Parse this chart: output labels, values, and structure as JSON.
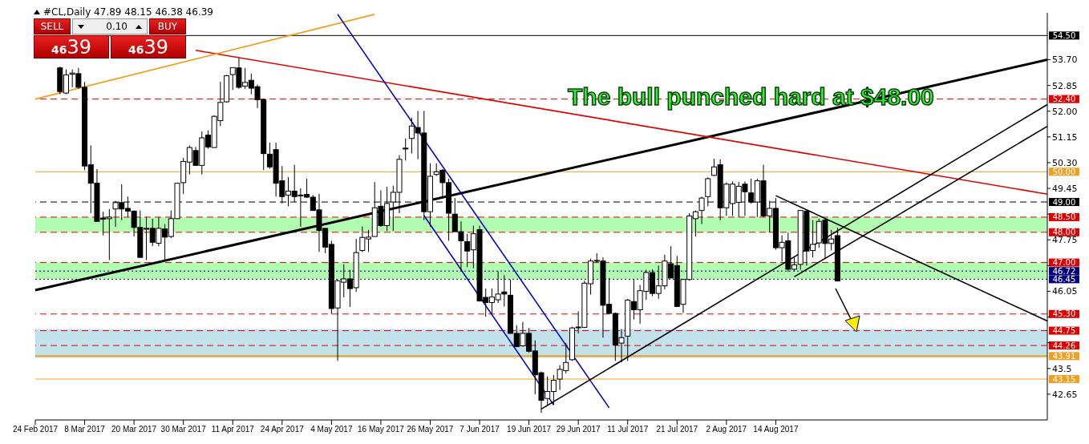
{
  "chart_data": {
    "type": "candlestick",
    "title": "#CL,Daily 47.89 48.15 46.38 46.39",
    "annotations": [
      "The bull punched hard at $48.00",
      "SELL",
      "0.10",
      "BUY",
      "46",
      "39",
      "46",
      "39"
    ],
    "categories": [
      "24 Feb 2017",
      null,
      null,
      null,
      null,
      null,
      null,
      null,
      "8 Mar 2017",
      null,
      null,
      null,
      null,
      null,
      null,
      null,
      "20 Mar 2017",
      null,
      null,
      null,
      null,
      null,
      null,
      null,
      "30 Mar 2017",
      null,
      null,
      null,
      null,
      null,
      null,
      null,
      "11 Apr 2017",
      null,
      null,
      null,
      null,
      null,
      null,
      null,
      "24 Apr 2017",
      null,
      null,
      null,
      null,
      null,
      null,
      null,
      "4 May 2017",
      null,
      null,
      null,
      null,
      null,
      null,
      null,
      "16 May 2017",
      null,
      null,
      null,
      null,
      null,
      null,
      null,
      "26 May 2017",
      null,
      null,
      null,
      null,
      null,
      null,
      null,
      "7 Jun 2017",
      null,
      null,
      null,
      null,
      null,
      null,
      null,
      "19 Jun 2017",
      null,
      null,
      null,
      null,
      null,
      null,
      null,
      "29 Jun 2017",
      null,
      null,
      null,
      null,
      null,
      null,
      null,
      "11 Jul 2017",
      null,
      null,
      null,
      null,
      null,
      null,
      null,
      "21 Jul 2017",
      null,
      null,
      null,
      null,
      null,
      null,
      null,
      "2 Aug 2017",
      null,
      null,
      null,
      null,
      null,
      null,
      null,
      "14 Aug 2017",
      null,
      null,
      null,
      null,
      null,
      null,
      null,
      null,
      null,
      null,
      null,
      null,
      null,
      null,
      null,
      null,
      null,
      null,
      null,
      null,
      null,
      null,
      null,
      null,
      null,
      null,
      null,
      null,
      null,
      null,
      null,
      null,
      null,
      null,
      null,
      null,
      null,
      null,
      null,
      null,
      null,
      null,
      null,
      null
    ],
    "ohlc": [
      null,
      null,
      null,
      null,
      [
        53.43,
        53.47,
        52.56,
        52.65
      ],
      [
        52.6,
        53.38,
        52.56,
        53.2
      ],
      [
        53.22,
        53.38,
        52.79,
        53.26
      ],
      [
        53.24,
        53.43,
        52.74,
        52.79
      ],
      [
        52.79,
        52.97,
        50.05,
        50.19
      ],
      [
        50.23,
        50.87,
        48.63,
        49.62
      ],
      [
        49.62,
        50.09,
        48.36,
        48.36
      ],
      [
        48.47,
        48.68,
        47.9,
        48.43
      ],
      [
        48.45,
        48.77,
        47.08,
        48.5
      ],
      [
        48.77,
        49.04,
        48.18,
        48.98
      ],
      [
        48.98,
        49.59,
        48.4,
        48.77
      ],
      [
        48.79,
        49.18,
        48.5,
        48.7
      ],
      [
        48.7,
        48.72,
        47.86,
        48.16
      ],
      [
        48.16,
        48.72,
        47.17,
        47.17
      ],
      [
        48.13,
        48.5,
        47.08,
        48.12
      ],
      [
        48.13,
        48.45,
        47.54,
        47.67
      ],
      [
        47.64,
        48.5,
        47.54,
        48.13
      ],
      [
        48.11,
        48.27,
        47.08,
        47.84
      ],
      [
        47.86,
        48.72,
        47.81,
        48.45
      ],
      [
        48.45,
        49.64,
        48.45,
        49.62
      ],
      [
        49.64,
        50.46,
        49.27,
        50.34
      ],
      [
        50.32,
        50.87,
        49.91,
        50.8
      ],
      [
        50.7,
        50.82,
        50.21,
        50.21
      ],
      [
        50.21,
        51.33,
        49.91,
        51.12
      ],
      [
        51.21,
        51.37,
        50.76,
        50.82
      ],
      [
        50.8,
        51.87,
        50.8,
        51.83
      ],
      [
        51.69,
        52.97,
        51.51,
        52.29
      ],
      [
        52.31,
        53.2,
        52.28,
        53.17
      ],
      [
        53.21,
        53.44,
        52.7,
        53.44
      ],
      [
        53.43,
        53.76,
        52.74,
        52.79
      ],
      [
        52.83,
        53.43,
        52.74,
        52.95
      ],
      [
        53.02,
        53.24,
        52.56,
        52.76
      ],
      [
        52.81,
        52.88,
        52.1,
        52.38
      ],
      [
        52.38,
        52.42,
        50.05,
        50.6
      ],
      [
        50.58,
        50.96,
        50.1,
        50.16
      ],
      [
        50.73,
        50.96,
        49.18,
        49.62
      ],
      [
        49.7,
        50.19,
        48.95,
        49.18
      ],
      [
        49.23,
        49.82,
        48.86,
        49.36
      ],
      [
        49.36,
        50.23,
        49.0,
        49.18
      ],
      [
        49.23,
        49.45,
        48.18,
        49.22
      ],
      [
        49.25,
        49.77,
        49.14,
        49.16
      ],
      [
        49.16,
        49.23,
        48.72,
        48.72
      ],
      [
        48.74,
        49.27,
        47.35,
        48.06
      ],
      [
        48.13,
        48.13,
        47.31,
        47.51
      ],
      [
        47.6,
        47.72,
        45.3,
        45.48
      ],
      [
        45.5,
        46.44,
        43.75,
        46.4
      ],
      [
        46.35,
        46.94,
        45.85,
        46.46
      ],
      [
        46.46,
        46.76,
        45.53,
        46.14
      ],
      [
        46.17,
        47.78,
        46.03,
        47.33
      ],
      [
        47.4,
        48.19,
        47.35,
        47.83
      ],
      [
        47.78,
        48.08,
        47.35,
        47.84
      ],
      [
        47.86,
        49.66,
        47.86,
        48.81
      ],
      [
        48.86,
        49.39,
        48.18,
        48.22
      ],
      [
        48.22,
        49.5,
        48.04,
        48.95
      ],
      [
        49.0,
        49.54,
        48.04,
        49.32
      ],
      [
        49.32,
        50.55,
        48.63,
        50.41
      ],
      [
        50.76,
        51.1,
        50.37,
        50.78
      ],
      [
        51.1,
        51.78,
        50.6,
        51.51
      ],
      [
        51.46,
        52.01,
        50.41,
        51.28
      ],
      [
        51.28,
        52.01,
        48.4,
        48.68
      ],
      [
        48.68,
        50.28,
        48.18,
        49.85
      ],
      [
        49.91,
        50.28,
        49.86,
        50.0
      ],
      [
        50.05,
        50.09,
        49.13,
        49.64
      ],
      [
        49.64,
        49.77,
        47.72,
        48.63
      ],
      [
        48.6,
        49.13,
        48.02,
        48.02
      ],
      [
        48.02,
        48.36,
        46.71,
        47.72
      ],
      [
        47.69,
        47.95,
        46.85,
        47.38
      ],
      [
        47.42,
        48.22,
        46.81,
        47.95
      ],
      [
        48.09,
        48.22,
        45.71,
        45.73
      ],
      [
        45.85,
        46.14,
        45.21,
        45.68
      ],
      [
        45.68,
        46.14,
        45.3,
        45.86
      ],
      [
        45.77,
        46.71,
        45.66,
        45.96
      ],
      [
        46.03,
        46.58,
        45.55,
        45.96
      ],
      [
        45.92,
        46.44,
        44.66,
        44.66
      ],
      [
        44.66,
        44.93,
        44.22,
        44.22
      ],
      [
        44.25,
        45.04,
        44.22,
        44.66
      ],
      [
        44.66,
        44.84,
        44.02,
        44.07
      ],
      [
        44.08,
        44.43,
        42.65,
        43.29
      ],
      [
        43.36,
        43.4,
        42.03,
        42.45
      ],
      [
        42.51,
        43.24,
        42.29,
        42.74
      ],
      [
        42.74,
        43.29,
        42.29,
        43.11
      ],
      [
        43.15,
        43.61,
        42.79,
        43.47
      ],
      [
        43.43,
        44.34,
        43.34,
        43.7
      ],
      [
        43.79,
        44.88,
        43.75,
        44.84
      ],
      [
        44.85,
        45.39,
        44.66,
        44.87
      ],
      [
        44.86,
        46.4,
        44.84,
        46.32
      ],
      [
        46.3,
        47.13,
        45.94,
        47.05
      ],
      [
        47.07,
        47.31,
        46.99,
        47.05
      ],
      [
        47.05,
        47.17,
        44.52,
        45.59
      ],
      [
        45.62,
        46.49,
        45.3,
        45.32
      ],
      [
        45.32,
        45.35,
        43.75,
        44.28
      ],
      [
        44.34,
        44.8,
        43.7,
        44.52
      ],
      [
        44.57,
        45.8,
        43.75,
        45.76
      ],
      [
        45.71,
        46.44,
        45.12,
        45.44
      ],
      [
        45.44,
        46.26,
        44.98,
        46.07
      ],
      [
        46.05,
        46.76,
        45.77,
        46.67
      ],
      [
        46.67,
        46.78,
        45.89,
        45.98
      ],
      [
        45.98,
        46.9,
        45.8,
        46.23
      ],
      [
        46.23,
        47.26,
        46.12,
        47.05
      ],
      [
        46.96,
        47.54,
        46.49,
        46.49
      ],
      [
        46.9,
        47.22,
        45.55,
        45.55
      ],
      [
        45.62,
        46.46,
        45.34,
        46.44
      ],
      [
        46.44,
        48.63,
        46.4,
        48.54
      ],
      [
        48.45,
        48.72,
        47.86,
        48.68
      ],
      [
        48.72,
        49.18,
        48.27,
        49.13
      ],
      [
        49.18,
        49.82,
        48.86,
        49.77
      ],
      [
        49.88,
        50.43,
        49.86,
        50.16
      ],
      [
        50.23,
        50.41,
        48.4,
        48.81
      ],
      [
        48.81,
        49.65,
        48.54,
        49.59
      ],
      [
        48.95,
        49.68,
        48.54,
        49.59
      ],
      [
        48.99,
        49.66,
        48.5,
        49.52
      ],
      [
        49.59,
        49.68,
        48.54,
        49.34
      ],
      [
        49.3,
        49.77,
        48.95,
        49.0
      ],
      [
        49.0,
        49.77,
        48.5,
        49.7
      ],
      [
        49.7,
        50.23,
        48.5,
        48.54
      ],
      [
        48.54,
        49.04,
        47.99,
        48.79
      ],
      [
        48.79,
        49.13,
        47.42,
        47.49
      ],
      [
        47.49,
        47.9,
        47.03,
        47.67
      ],
      [
        47.72,
        47.99,
        46.69,
        46.78
      ],
      [
        46.78,
        47.17,
        46.71,
        46.92
      ],
      [
        46.94,
        48.72,
        46.76,
        48.72
      ],
      [
        48.7,
        48.72,
        46.9,
        47.38
      ],
      [
        47.4,
        48.4,
        47.17,
        47.6
      ],
      [
        47.65,
        48.45,
        47.49,
        48.36
      ],
      [
        48.4,
        48.45,
        47.11,
        47.63
      ],
      [
        47.63,
        48.08,
        47.4,
        47.78
      ],
      [
        47.89,
        48.15,
        46.38,
        46.39
      ],
      null,
      null,
      null,
      null,
      null,
      null,
      null,
      null,
      null,
      null,
      null,
      null,
      null,
      null,
      null,
      null,
      null,
      null,
      null,
      null,
      null,
      null,
      null,
      null,
      null,
      null,
      null,
      null,
      null,
      null,
      null,
      null,
      null,
      null
    ],
    "series": [
      {
        "type": "line",
        "color": "#000000",
        "values": [
          46.09,
          null,
          null,
          null,
          null,
          null,
          null,
          null,
          null,
          null,
          null,
          null,
          null,
          null,
          null,
          null,
          null,
          null,
          null,
          null,
          null,
          null,
          null,
          null,
          null,
          null,
          null,
          null,
          null,
          null,
          null,
          null,
          null,
          null,
          null,
          null,
          null,
          null,
          null,
          null,
          null,
          null,
          null,
          null,
          null,
          null,
          null,
          null,
          null,
          null,
          null,
          null,
          null,
          null,
          null,
          null,
          null,
          null,
          null,
          null,
          null,
          null,
          null,
          null,
          null,
          null,
          null,
          null,
          null,
          null,
          null,
          null,
          null,
          null,
          null,
          null,
          null,
          null,
          null,
          null,
          null,
          null,
          null,
          null,
          null,
          null,
          null,
          null,
          null,
          null,
          null,
          null,
          null,
          null,
          null,
          null,
          null,
          null,
          null,
          null,
          null,
          null,
          null,
          null,
          null,
          null,
          null,
          null,
          null,
          null,
          null,
          null,
          null,
          null,
          null,
          null,
          null,
          null,
          null,
          null,
          null,
          null,
          null,
          null,
          null,
          null,
          null,
          null,
          null,
          null,
          null,
          null,
          null,
          null,
          null,
          null,
          null,
          null,
          null,
          null,
          null,
          null,
          null,
          null,
          null,
          null,
          null,
          null,
          null,
          null,
          null,
          null,
          null,
          null,
          null,
          null,
          null,
          null,
          null,
          null,
          null,
          null,
          null,
          null,
          53.7
        ]
      },
      {
        "type": "line",
        "color": "#e00000",
        "values": [
          null,
          null,
          null,
          null,
          null,
          null,
          null,
          null,
          null,
          null,
          null,
          null,
          null,
          null,
          null,
          null,
          null,
          null,
          null,
          null,
          null,
          null,
          null,
          null,
          null,
          null,
          54.01,
          null,
          null,
          null,
          null,
          null,
          null,
          null,
          null,
          null,
          null,
          null,
          null,
          null,
          null,
          null,
          null,
          null,
          null,
          null,
          null,
          null,
          null,
          null,
          null,
          null,
          null,
          null,
          null,
          null,
          null,
          null,
          null,
          null,
          null,
          null,
          null,
          null,
          null,
          null,
          null,
          null,
          null,
          null,
          null,
          null,
          null,
          null,
          null,
          null,
          null,
          null,
          null,
          null,
          null,
          null,
          null,
          null,
          null,
          null,
          null,
          null,
          null,
          null,
          null,
          null,
          null,
          null,
          null,
          null,
          null,
          null,
          null,
          null,
          null,
          null,
          null,
          null,
          null,
          null,
          null,
          null,
          null,
          null,
          null,
          null,
          null,
          null,
          null,
          null,
          null,
          null,
          null,
          null,
          null,
          null,
          null,
          null,
          null,
          null,
          null,
          null,
          null,
          null,
          null,
          null,
          null,
          null,
          null,
          null,
          null,
          null,
          null,
          null,
          null,
          null,
          null,
          null,
          null,
          null,
          null,
          null,
          null,
          null,
          null,
          null,
          null,
          null,
          null,
          null,
          null,
          null,
          null,
          null,
          null,
          null,
          null,
          null,
          49.26
        ]
      },
      {
        "type": "line",
        "color": "#f0a020",
        "values": [
          52.4,
          null,
          null,
          null,
          null,
          null,
          null,
          null,
          null,
          null,
          null,
          null,
          null,
          null,
          null,
          null,
          null,
          null,
          null,
          null,
          null,
          null,
          null,
          null,
          null,
          null,
          null,
          null,
          null,
          null,
          null,
          null,
          null,
          null,
          null,
          null,
          null,
          null,
          null,
          null,
          null,
          null,
          null,
          null,
          null,
          null,
          null,
          null,
          null,
          null,
          null,
          null,
          null,
          null,
          null,
          55.2,
          null,
          null,
          null,
          null,
          null,
          null,
          null,
          null,
          null,
          null,
          null,
          null,
          null,
          null,
          null,
          null,
          null,
          null,
          null,
          null,
          null,
          null,
          null,
          null,
          null,
          null,
          null,
          null,
          null,
          null,
          null,
          null,
          null,
          null,
          null,
          null,
          null,
          null,
          null,
          null,
          null,
          null,
          null,
          null,
          null,
          null,
          null,
          null,
          null,
          null,
          null,
          null,
          null,
          null,
          null,
          null,
          null,
          null,
          null,
          null,
          null,
          null,
          null,
          null,
          null,
          null,
          null,
          null,
          null,
          null,
          null,
          null,
          null,
          null,
          null,
          null,
          null,
          null,
          null,
          null,
          null,
          null,
          null,
          null,
          null,
          null,
          null,
          null,
          null,
          null,
          null,
          null,
          null,
          null,
          null,
          null,
          null,
          null,
          null,
          null,
          null,
          null,
          null,
          null,
          null,
          null,
          null,
          null,
          null
        ]
      },
      {
        "type": "line",
        "color": "#0000c0",
        "values": [
          null,
          null,
          null,
          null,
          null,
          null,
          null,
          null,
          null,
          null,
          null,
          null,
          null,
          null,
          null,
          null,
          null,
          null,
          null,
          null,
          null,
          null,
          null,
          null,
          null,
          null,
          null,
          null,
          null,
          null,
          null,
          null,
          null,
          null,
          null,
          null,
          null,
          null,
          null,
          null,
          null,
          null,
          null,
          null,
          null,
          null,
          null,
          null,
          null,
          55.2,
          null,
          null,
          null,
          null,
          null,
          null,
          null,
          null,
          null,
          null,
          null,
          null,
          null,
          null,
          null,
          null,
          null,
          null,
          null,
          null,
          null,
          null,
          null,
          null,
          null,
          null,
          null,
          null,
          null,
          null,
          null,
          null,
          null,
          null,
          null,
          null,
          null,
          null,
          null,
          null,
          null,
          null,
          null,
          42.2,
          null,
          null,
          null,
          null,
          null,
          null,
          null,
          null,
          null,
          null,
          null,
          null,
          null,
          null,
          null,
          null,
          null,
          null,
          null,
          null,
          null,
          null,
          null,
          null,
          null,
          null,
          null,
          null,
          null,
          null,
          null,
          null,
          null,
          null,
          null,
          null,
          null,
          null,
          null,
          null,
          null,
          null,
          null,
          null,
          null,
          null,
          null,
          null,
          null,
          null,
          null,
          null,
          null,
          null,
          null,
          null,
          null,
          null,
          null,
          null,
          null,
          null,
          null,
          null,
          null,
          null,
          null,
          null,
          null,
          null,
          null
        ]
      },
      {
        "type": "line",
        "color": "#0000c0",
        "values": [
          null,
          null,
          null,
          null,
          null,
          null,
          null,
          null,
          null,
          null,
          null,
          null,
          null,
          null,
          null,
          null,
          null,
          null,
          null,
          null,
          null,
          null,
          null,
          null,
          null,
          null,
          null,
          null,
          null,
          null,
          null,
          null,
          null,
          null,
          null,
          null,
          null,
          null,
          null,
          null,
          null,
          null,
          null,
          null,
          null,
          null,
          null,
          null,
          null,
          null,
          null,
          null,
          null,
          null,
          null,
          null,
          null,
          null,
          null,
          null,
          null,
          null,
          null,
          48.55,
          null,
          null,
          null,
          null,
          null,
          null,
          null,
          null,
          null,
          null,
          null,
          null,
          null,
          null,
          null,
          null,
          null,
          null,
          null,
          null,
          42.3,
          null,
          null,
          null,
          null,
          null,
          null,
          null,
          null,
          null,
          null,
          null,
          null,
          null,
          null,
          null,
          null,
          null,
          null,
          null,
          null,
          null,
          null,
          null,
          null,
          null,
          null,
          null,
          null,
          null,
          null,
          null,
          null,
          null,
          null,
          null,
          null,
          null,
          null,
          null,
          null,
          null,
          null,
          null,
          null,
          null,
          null,
          null,
          null,
          null,
          null,
          null,
          null,
          null,
          null,
          null,
          null,
          null,
          null,
          null,
          null,
          null,
          null,
          null,
          null,
          null,
          null,
          null,
          null,
          null,
          null,
          null,
          null,
          null,
          null,
          null,
          null,
          null,
          null,
          null,
          null
        ]
      },
      {
        "type": "line",
        "color": "#000000",
        "values": [
          null,
          null,
          null,
          null,
          null,
          null,
          null,
          null,
          null,
          null,
          null,
          null,
          null,
          null,
          null,
          null,
          null,
          null,
          null,
          null,
          null,
          null,
          null,
          null,
          null,
          null,
          null,
          null,
          null,
          null,
          null,
          null,
          null,
          null,
          null,
          null,
          null,
          null,
          null,
          null,
          null,
          null,
          null,
          null,
          null,
          null,
          null,
          null,
          null,
          null,
          null,
          null,
          null,
          null,
          null,
          null,
          null,
          null,
          null,
          null,
          null,
          null,
          null,
          null,
          null,
          null,
          null,
          null,
          null,
          null,
          null,
          null,
          null,
          null,
          null,
          null,
          null,
          null,
          null,
          null,
          null,
          null,
          42.16,
          null,
          null,
          null,
          null,
          null,
          null,
          null,
          null,
          null,
          null,
          null,
          null,
          null,
          null,
          null,
          null,
          null,
          null,
          null,
          null,
          null,
          null,
          null,
          null,
          null,
          null,
          null,
          null,
          null,
          null,
          null,
          null,
          null,
          null,
          null,
          null,
          null,
          null,
          null,
          null,
          null,
          null,
          null,
          null,
          null,
          null,
          null,
          null,
          null,
          null,
          null,
          null,
          null,
          null,
          null,
          null,
          null,
          null,
          null,
          null,
          null,
          null,
          null,
          null,
          null,
          null,
          null,
          null,
          null,
          null,
          null,
          null,
          null,
          null,
          null,
          null,
          null,
          null,
          null,
          null,
          null,
          52.22
        ]
      },
      {
        "type": "line",
        "color": "#000000",
        "values": [
          null,
          null,
          null,
          null,
          null,
          null,
          null,
          null,
          null,
          null,
          null,
          null,
          null,
          null,
          null,
          null,
          null,
          null,
          null,
          null,
          null,
          null,
          null,
          null,
          null,
          null,
          null,
          null,
          null,
          null,
          null,
          null,
          null,
          null,
          null,
          null,
          null,
          null,
          null,
          null,
          null,
          null,
          null,
          null,
          null,
          null,
          null,
          null,
          null,
          null,
          null,
          null,
          null,
          null,
          null,
          null,
          null,
          null,
          null,
          null,
          null,
          null,
          null,
          null,
          null,
          null,
          null,
          null,
          null,
          null,
          null,
          null,
          null,
          null,
          null,
          null,
          null,
          null,
          null,
          null,
          null,
          null,
          null,
          null,
          null,
          null,
          null,
          null,
          null,
          null,
          null,
          null,
          null,
          null,
          null,
          null,
          null,
          null,
          null,
          null,
          null,
          null,
          null,
          null,
          null,
          null,
          null,
          null,
          null,
          null,
          null,
          null,
          null,
          null,
          null,
          null,
          null,
          null,
          null,
          null,
          null,
          null,
          null,
          46.53,
          null,
          null,
          null,
          null,
          null,
          null,
          null,
          null,
          null,
          null,
          null,
          null,
          null,
          null,
          null,
          null,
          null,
          null,
          null,
          null,
          null,
          null,
          null,
          null,
          null,
          null,
          null,
          null,
          null,
          null,
          null,
          null,
          null,
          null,
          null,
          null,
          null,
          null,
          null,
          null,
          51.5
        ]
      },
      {
        "type": "line",
        "color": "#000000",
        "values": [
          null,
          null,
          null,
          null,
          null,
          null,
          null,
          null,
          null,
          null,
          null,
          null,
          null,
          null,
          null,
          null,
          null,
          null,
          null,
          null,
          null,
          null,
          null,
          null,
          null,
          null,
          null,
          null,
          null,
          null,
          null,
          null,
          null,
          null,
          null,
          null,
          null,
          null,
          null,
          null,
          null,
          null,
          null,
          null,
          null,
          null,
          null,
          null,
          null,
          null,
          null,
          null,
          null,
          null,
          null,
          null,
          null,
          null,
          null,
          null,
          null,
          null,
          null,
          null,
          null,
          null,
          null,
          null,
          null,
          null,
          null,
          null,
          null,
          null,
          null,
          null,
          null,
          null,
          null,
          null,
          null,
          null,
          null,
          null,
          null,
          null,
          null,
          null,
          null,
          null,
          null,
          null,
          null,
          null,
          null,
          null,
          null,
          null,
          null,
          null,
          null,
          null,
          null,
          null,
          null,
          null,
          null,
          null,
          null,
          null,
          null,
          null,
          null,
          null,
          null,
          null,
          null,
          null,
          null,
          null,
          49.21,
          null,
          null,
          null,
          null,
          null,
          null,
          null,
          null,
          null,
          null,
          null,
          null,
          null,
          null,
          null,
          null,
          null,
          null,
          null,
          null,
          null,
          null,
          null,
          null,
          null,
          null,
          null,
          null,
          null,
          null,
          null,
          null,
          null,
          null,
          null,
          null,
          null,
          null,
          null,
          null,
          null,
          null,
          null,
          45.07
        ]
      }
    ],
    "ylim": [
      41.8,
      55.25
    ],
    "yticks": [
      {
        "value": 42.65,
        "label": "42.65"
      },
      43.5,
      {
        "value": 44.35,
        "label": null
      },
      {
        "value": 45.2,
        "label": null
      },
      46.05,
      {
        "value": 46.9,
        "label": null
      },
      47.75,
      {
        "value": 48.6,
        "label": null
      },
      49.45,
      {
        "value": 50.3,
        "label": "50.30"
      },
      51.15,
      {
        "value": 52,
        "label": "52.00"
      },
      52.85,
      {
        "value": 53.7,
        "label": "53.70"
      }
    ],
    "ref_lines": [
      {
        "axis": "y",
        "value": 54.5,
        "label": "54.50",
        "color": "#000000",
        "line_style": "solid"
      },
      {
        "axis": "y",
        "value": 52.4,
        "label": "52.40",
        "color": "#e00000",
        "line_style": "dashed"
      },
      {
        "axis": "y",
        "value": 50,
        "label": "50.00",
        "color": "#f0a020",
        "line_style": "solid"
      },
      {
        "axis": "y",
        "value": 49,
        "label": "49.00",
        "color": "#000000",
        "line_style": "dashed"
      },
      {
        "axis": "y",
        "value": 48.5,
        "label": "48.50",
        "color": "#e00000",
        "line_style": "dashed"
      },
      {
        "axis": "y",
        "value": 48,
        "label": "48.00",
        "color": "#e00000",
        "line_style": "dashed"
      },
      {
        "axis": "y",
        "value": 47,
        "label": "47.00",
        "color": "#e00000",
        "line_style": "dashed"
      },
      {
        "axis": "y",
        "value": 46.72,
        "label": "46.72",
        "color": "#000080",
        "line_style": "dotted"
      },
      {
        "axis": "y",
        "value": 46.45,
        "label": "46.45",
        "color": "#000080",
        "line_style": "dotted"
      },
      {
        "axis": "y",
        "value": 45.3,
        "label": "45.30",
        "color": "#e00000",
        "line_style": "dashed"
      },
      {
        "axis": "y",
        "value": 44.75,
        "label": "44.75",
        "color": "#e00000",
        "line_style": "dashed"
      },
      {
        "axis": "y",
        "value": 44.26,
        "label": "44.26",
        "color": "#e00000",
        "line_style": "dashed"
      },
      {
        "axis": "y",
        "value": 43.91,
        "label": "43.91",
        "color": "#f0a020",
        "line_style": "solid"
      },
      {
        "axis": "y",
        "value": 43.15,
        "label": "43.15",
        "color": "#f0a020",
        "line_style": "solid"
      }
    ],
    "bands": [
      {
        "axis": "y",
        "from": 48,
        "to": 48.5,
        "color": "#98fb98"
      },
      {
        "axis": "y",
        "from": 46.45,
        "to": 47,
        "color": "#98fb98"
      },
      {
        "axis": "y",
        "from": 43.85,
        "to": 44.8,
        "color": "#add8e6"
      }
    ],
    "marker": "none",
    "grid": false
  }
}
